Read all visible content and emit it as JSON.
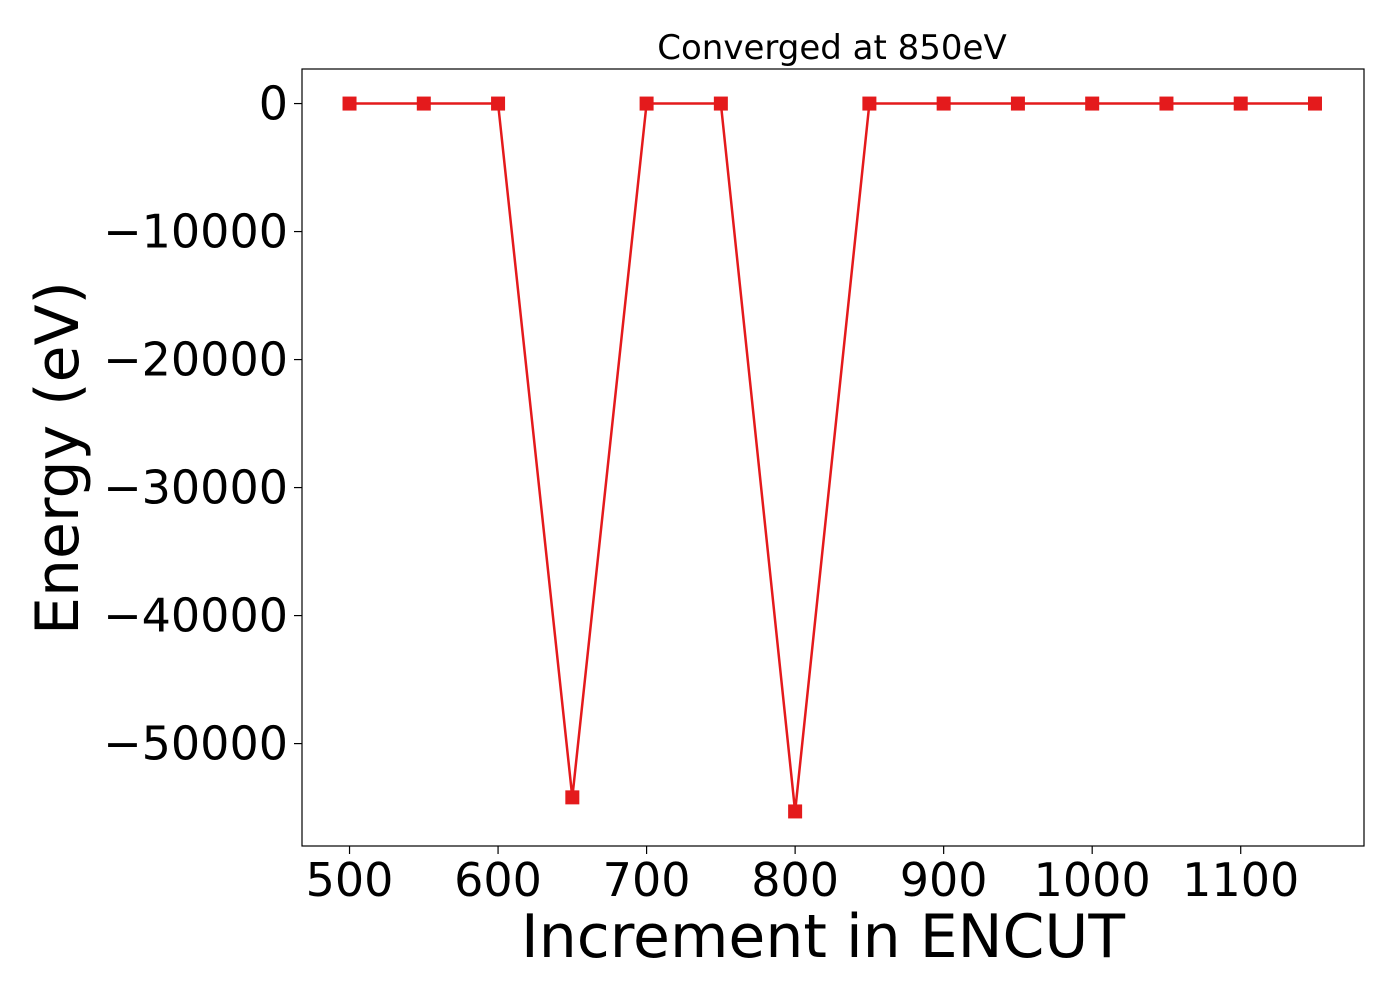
{
  "chart_data": {
    "type": "line",
    "title": "Converged at 850eV",
    "xlabel": "Increment in ENCUT",
    "ylabel": "Energy (eV)",
    "x": [
      500,
      550,
      600,
      650,
      700,
      750,
      800,
      850,
      900,
      950,
      1000,
      1050,
      1100,
      1150
    ],
    "series": [
      {
        "values": [
          0,
          0,
          0,
          -54200,
          0,
          0,
          -55300,
          0,
          0,
          0,
          0,
          0,
          0,
          0
        ],
        "color": "#e41a1c",
        "marker": "square"
      }
    ],
    "xlim": [
      468,
      1183
    ],
    "ylim": [
      -58000,
      2700
    ],
    "xticks": [
      500,
      600,
      700,
      800,
      900,
      1000,
      1100
    ],
    "xtick_labels": [
      "500",
      "600",
      "700",
      "800",
      "900",
      "1000",
      "1100"
    ],
    "yticks": [
      0,
      -10000,
      -20000,
      -30000,
      -40000,
      -50000
    ],
    "ytick_labels": [
      "0",
      "−10000",
      "−20000",
      "−30000",
      "−40000",
      "−50000"
    ],
    "grid": false,
    "legend": "none"
  }
}
